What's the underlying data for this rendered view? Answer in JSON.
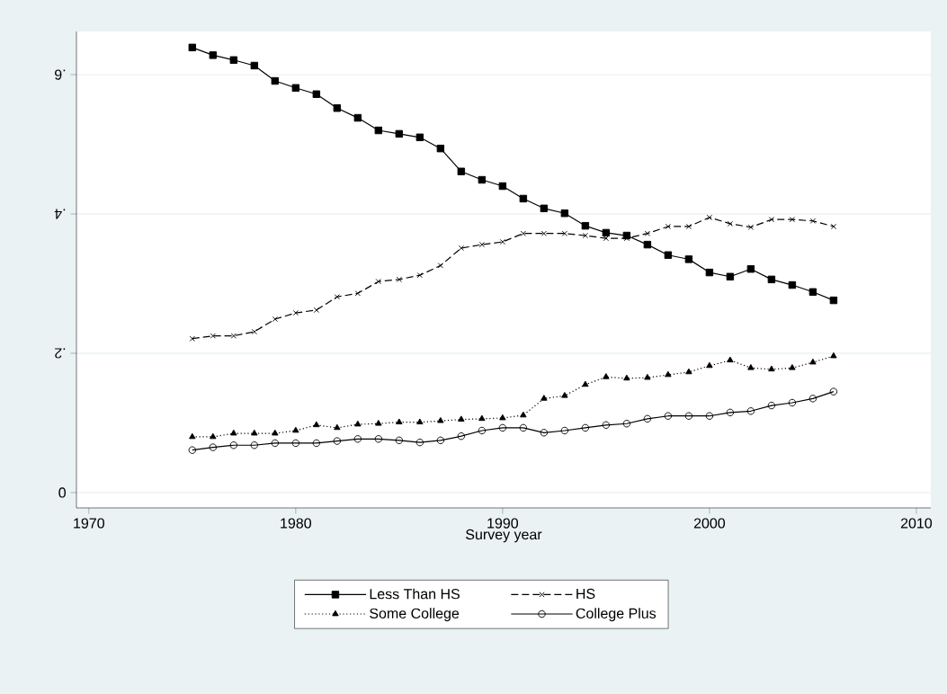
{
  "chart_data": {
    "type": "line",
    "xlabel": "Survey year",
    "x": [
      1975,
      1976,
      1977,
      1978,
      1979,
      1980,
      1981,
      1982,
      1983,
      1984,
      1985,
      1986,
      1987,
      1988,
      1989,
      1990,
      1991,
      1992,
      1993,
      1994,
      1995,
      1996,
      1997,
      1998,
      1999,
      2000,
      2001,
      2002,
      2003,
      2004,
      2005,
      2006
    ],
    "series": [
      {
        "name": "Less Than HS",
        "color": "#000000",
        "marker": "square",
        "line_style": "solid",
        "values": [
          0.639,
          0.628,
          0.621,
          0.613,
          0.591,
          0.581,
          0.572,
          0.552,
          0.538,
          0.52,
          0.515,
          0.51,
          0.494,
          0.461,
          0.449,
          0.44,
          0.422,
          0.408,
          0.401,
          0.383,
          0.373,
          0.369,
          0.356,
          0.341,
          0.335,
          0.316,
          0.31,
          0.321,
          0.306,
          0.298,
          0.288,
          0.276
        ]
      },
      {
        "name": "HS",
        "color": "#000000",
        "marker": "cross",
        "line_style": "dashed",
        "values": [
          0.221,
          0.225,
          0.225,
          0.231,
          0.249,
          0.258,
          0.262,
          0.281,
          0.286,
          0.303,
          0.306,
          0.312,
          0.326,
          0.351,
          0.356,
          0.36,
          0.372,
          0.372,
          0.372,
          0.369,
          0.365,
          0.365,
          0.372,
          0.382,
          0.382,
          0.395,
          0.386,
          0.381,
          0.392,
          0.392,
          0.39,
          0.382
        ]
      },
      {
        "name": "Some College",
        "color": "#000000",
        "marker": "triangle",
        "line_style": "dotted",
        "values": [
          0.08,
          0.08,
          0.085,
          0.085,
          0.085,
          0.089,
          0.097,
          0.093,
          0.098,
          0.099,
          0.101,
          0.101,
          0.103,
          0.105,
          0.106,
          0.107,
          0.111,
          0.135,
          0.139,
          0.155,
          0.166,
          0.164,
          0.165,
          0.169,
          0.173,
          0.182,
          0.19,
          0.179,
          0.177,
          0.179,
          0.187,
          0.196
        ]
      },
      {
        "name": "College Plus",
        "color": "#000000",
        "marker": "circle",
        "line_style": "solid",
        "values": [
          0.061,
          0.065,
          0.068,
          0.068,
          0.071,
          0.071,
          0.071,
          0.074,
          0.077,
          0.077,
          0.075,
          0.072,
          0.075,
          0.081,
          0.089,
          0.093,
          0.093,
          0.086,
          0.089,
          0.093,
          0.097,
          0.099,
          0.106,
          0.11,
          0.11,
          0.11,
          0.115,
          0.117,
          0.125,
          0.129,
          0.135,
          0.145
        ]
      }
    ],
    "xlim": [
      1969.4,
      2010.7
    ],
    "ylim": [
      -0.022,
      0.662
    ],
    "xticks": [
      1970,
      1980,
      1990,
      2000,
      2010
    ],
    "yticks": [
      0,
      {
        "value": 0.2,
        "label": ".2"
      },
      {
        "value": 0.4,
        "label": ".4"
      },
      {
        "value": 0.6,
        "label": ".6"
      }
    ],
    "grid": "y",
    "legend": "bottom"
  }
}
